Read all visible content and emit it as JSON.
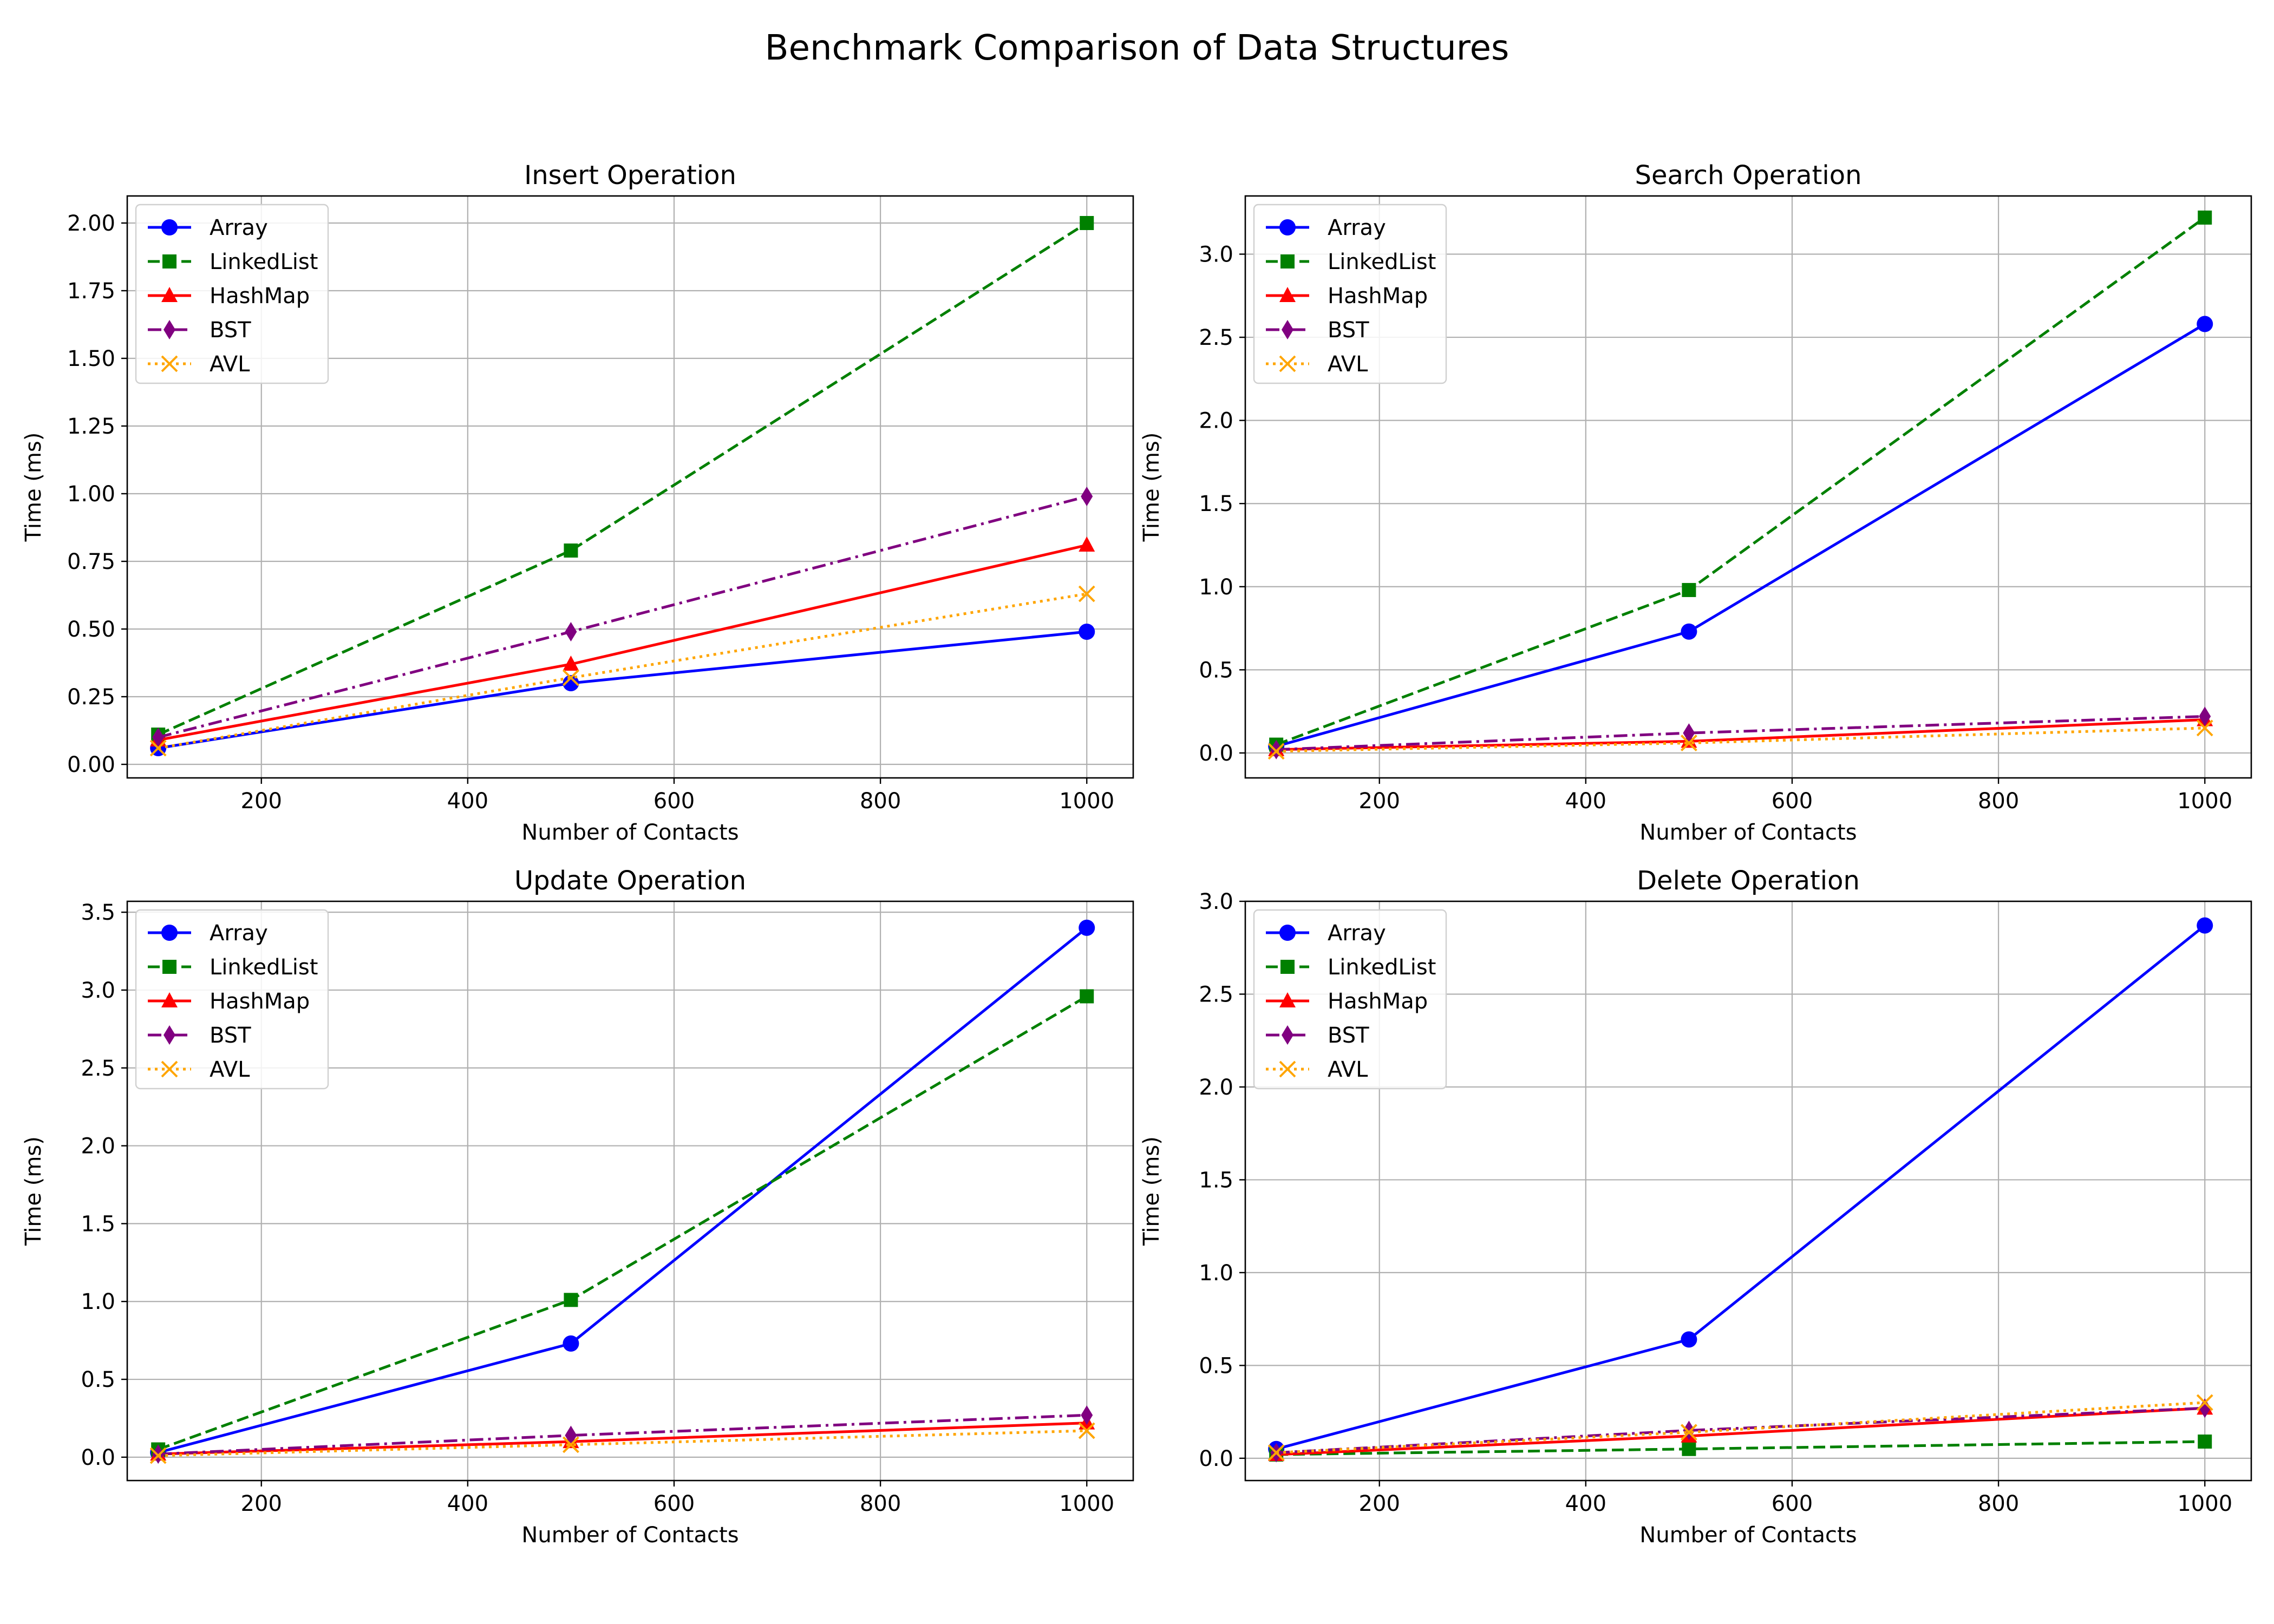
{
  "figure_title": "Benchmark Comparison of Data Structures",
  "series_styles": [
    {
      "name": "Array",
      "color": "#0000ff",
      "dash": "solid",
      "marker": "circle"
    },
    {
      "name": "LinkedList",
      "color": "#008000",
      "dash": "dashed",
      "marker": "square"
    },
    {
      "name": "HashMap",
      "color": "#ff0000",
      "dash": "solid",
      "marker": "triangle"
    },
    {
      "name": "BST",
      "color": "#800080",
      "dash": "dashdot",
      "marker": "diamond"
    },
    {
      "name": "AVL",
      "color": "#ffa500",
      "dash": "dotted",
      "marker": "x"
    }
  ],
  "chart_data": [
    {
      "type": "line",
      "title": "Insert Operation",
      "xlabel": "Number of Contacts",
      "ylabel": "Time (ms)",
      "x": [
        100,
        500,
        1000
      ],
      "xlim": [
        70,
        1045
      ],
      "ylim": [
        -0.05,
        2.1
      ],
      "xticks": [
        200,
        400,
        600,
        800,
        1000
      ],
      "yticks": [
        0.0,
        0.25,
        0.5,
        0.75,
        1.0,
        1.25,
        1.5,
        1.75,
        2.0
      ],
      "ytick_labels": [
        "0.00",
        "0.25",
        "0.50",
        "0.75",
        "1.00",
        "1.25",
        "1.50",
        "1.75",
        "2.00"
      ],
      "grid": true,
      "legend_position": "upper-left",
      "series": [
        {
          "name": "Array",
          "values": [
            0.06,
            0.3,
            0.49
          ]
        },
        {
          "name": "LinkedList",
          "values": [
            0.11,
            0.79,
            2.0
          ]
        },
        {
          "name": "HashMap",
          "values": [
            0.09,
            0.37,
            0.81
          ]
        },
        {
          "name": "BST",
          "values": [
            0.1,
            0.49,
            0.99
          ]
        },
        {
          "name": "AVL",
          "values": [
            0.06,
            0.32,
            0.63
          ]
        }
      ]
    },
    {
      "type": "line",
      "title": "Search Operation",
      "xlabel": "Number of Contacts",
      "ylabel": "Time (ms)",
      "x": [
        100,
        500,
        1000
      ],
      "xlim": [
        70,
        1045
      ],
      "ylim": [
        -0.15,
        3.35
      ],
      "xticks": [
        200,
        400,
        600,
        800,
        1000
      ],
      "yticks": [
        0.0,
        0.5,
        1.0,
        1.5,
        2.0,
        2.5,
        3.0
      ],
      "ytick_labels": [
        "0.0",
        "0.5",
        "1.0",
        "1.5",
        "2.0",
        "2.5",
        "3.0"
      ],
      "grid": true,
      "legend_position": "upper-left",
      "series": [
        {
          "name": "Array",
          "values": [
            0.04,
            0.73,
            2.58
          ]
        },
        {
          "name": "LinkedList",
          "values": [
            0.05,
            0.98,
            3.22
          ]
        },
        {
          "name": "HashMap",
          "values": [
            0.02,
            0.07,
            0.2
          ]
        },
        {
          "name": "BST",
          "values": [
            0.02,
            0.12,
            0.22
          ]
        },
        {
          "name": "AVL",
          "values": [
            0.01,
            0.06,
            0.15
          ]
        }
      ]
    },
    {
      "type": "line",
      "title": "Update Operation",
      "xlabel": "Number of Contacts",
      "ylabel": "Time (ms)",
      "x": [
        100,
        500,
        1000
      ],
      "xlim": [
        70,
        1045
      ],
      "ylim": [
        -0.15,
        3.57
      ],
      "xticks": [
        200,
        400,
        600,
        800,
        1000
      ],
      "yticks": [
        0.0,
        0.5,
        1.0,
        1.5,
        2.0,
        2.5,
        3.0,
        3.5
      ],
      "ytick_labels": [
        "0.0",
        "0.5",
        "1.0",
        "1.5",
        "2.0",
        "2.5",
        "3.0",
        "3.5"
      ],
      "grid": true,
      "legend_position": "upper-left",
      "series": [
        {
          "name": "Array",
          "values": [
            0.03,
            0.73,
            3.4
          ]
        },
        {
          "name": "LinkedList",
          "values": [
            0.05,
            1.01,
            2.96
          ]
        },
        {
          "name": "HashMap",
          "values": [
            0.02,
            0.1,
            0.22
          ]
        },
        {
          "name": "BST",
          "values": [
            0.02,
            0.14,
            0.27
          ]
        },
        {
          "name": "AVL",
          "values": [
            0.01,
            0.08,
            0.17
          ]
        }
      ]
    },
    {
      "type": "line",
      "title": "Delete Operation",
      "xlabel": "Number of Contacts",
      "ylabel": "Time (ms)",
      "x": [
        100,
        500,
        1000
      ],
      "xlim": [
        70,
        1045
      ],
      "ylim": [
        -0.12,
        3.0
      ],
      "xticks": [
        200,
        400,
        600,
        800,
        1000
      ],
      "yticks": [
        0.0,
        0.5,
        1.0,
        1.5,
        2.0,
        2.5,
        3.0
      ],
      "ytick_labels": [
        "0.0",
        "0.5",
        "1.0",
        "1.5",
        "2.0",
        "2.5",
        "3.0"
      ],
      "grid": true,
      "legend_position": "upper-left",
      "series": [
        {
          "name": "Array",
          "values": [
            0.05,
            0.64,
            2.87
          ]
        },
        {
          "name": "LinkedList",
          "values": [
            0.02,
            0.05,
            0.09
          ]
        },
        {
          "name": "HashMap",
          "values": [
            0.02,
            0.12,
            0.27
          ]
        },
        {
          "name": "BST",
          "values": [
            0.03,
            0.15,
            0.27
          ]
        },
        {
          "name": "AVL",
          "values": [
            0.03,
            0.14,
            0.3
          ]
        }
      ]
    }
  ]
}
